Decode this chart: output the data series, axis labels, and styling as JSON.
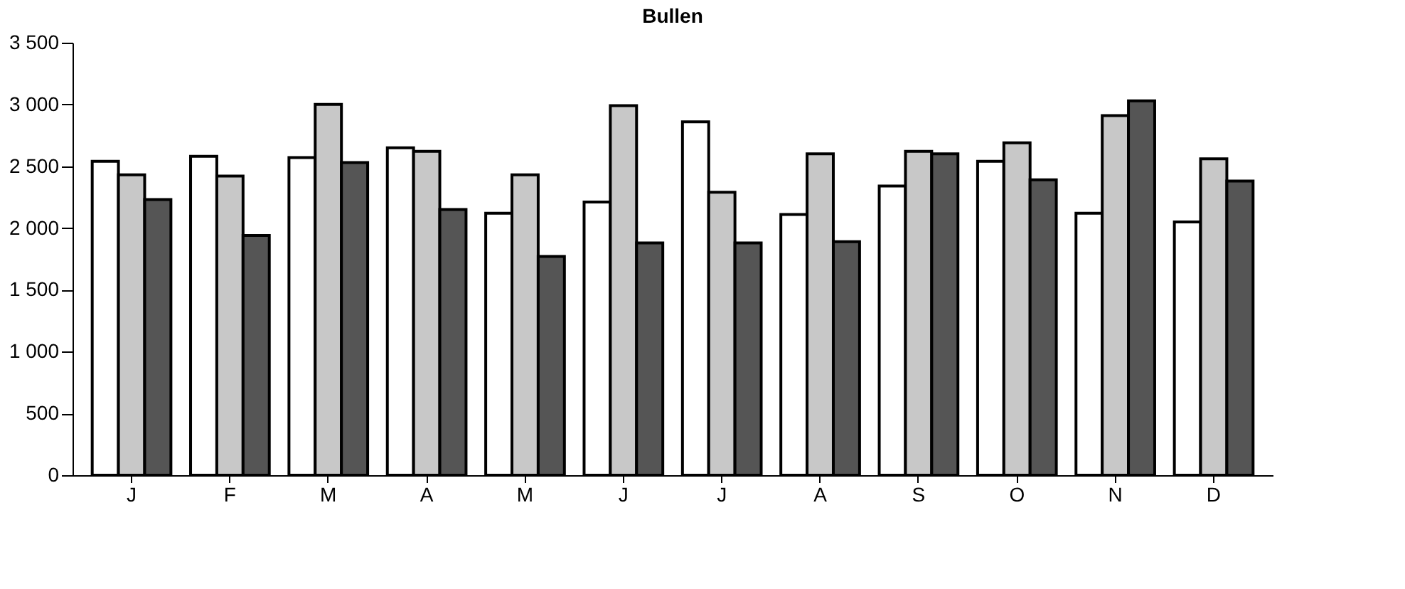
{
  "chart_data": {
    "type": "bar",
    "title": "Bullen",
    "categories": [
      "J",
      "F",
      "M",
      "A",
      "M",
      "J",
      "J",
      "A",
      "S",
      "O",
      "N",
      "D"
    ],
    "series": [
      {
        "color": "#ffffff",
        "values": [
          2540,
          2580,
          2570,
          2650,
          2120,
          2210,
          2860,
          2110,
          2340,
          2540,
          2120,
          2050
        ]
      },
      {
        "color": "#c8c8c8",
        "values": [
          2430,
          2420,
          3000,
          2620,
          2430,
          2990,
          2290,
          2600,
          2620,
          2690,
          2910,
          2560
        ]
      },
      {
        "color": "#555555",
        "values": [
          2230,
          1940,
          2530,
          2150,
          1770,
          1880,
          1880,
          1890,
          2600,
          2390,
          3030,
          2380
        ]
      }
    ],
    "ylim": [
      0,
      3500
    ],
    "yticks": [
      0,
      500,
      {
        "value": 1000,
        "label": "1 000"
      },
      {
        "value": 1500,
        "label": "1 500"
      },
      {
        "value": 2000,
        "label": "2 000"
      },
      {
        "value": 2500,
        "label": "2 500"
      },
      {
        "value": 3000,
        "label": "3 000"
      },
      {
        "value": 3500,
        "label": "3 500"
      }
    ],
    "grid": false,
    "legend": false
  }
}
